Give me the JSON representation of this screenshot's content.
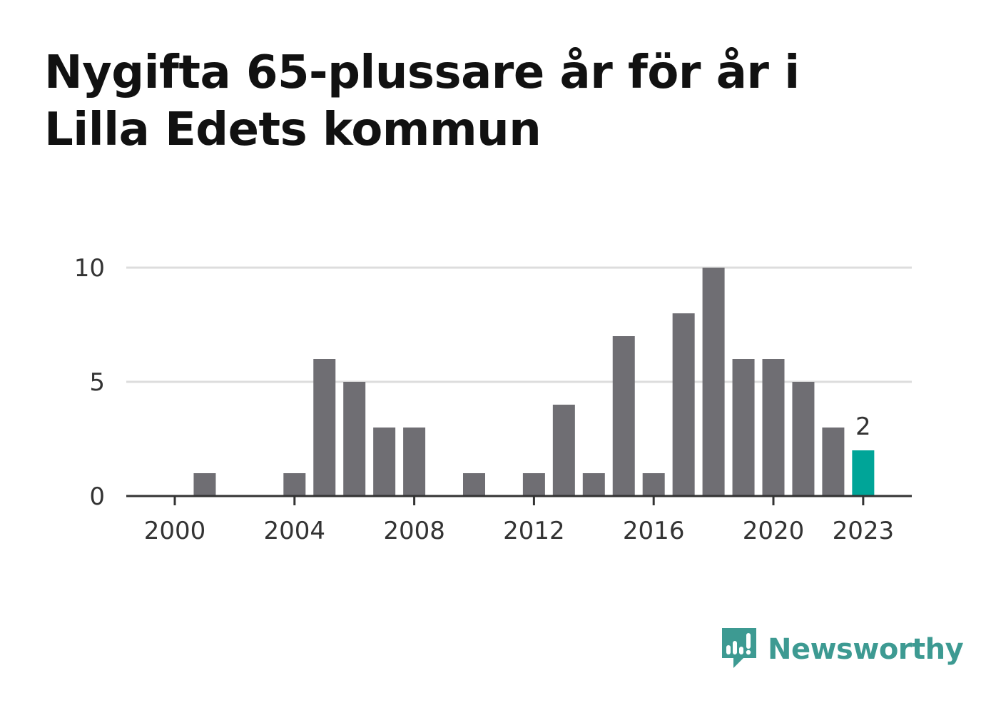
{
  "title": "Nygifta 65-plussare år för år i Lilla Edets kommun",
  "brand": {
    "name": "Newsworthy",
    "icon": "newsworthy-logo-icon",
    "color": "#3d9a92"
  },
  "colors": {
    "bar": "#6f6e73",
    "highlight": "#00a598",
    "grid": "#dddddd",
    "axis": "#333333"
  },
  "chart_data": {
    "type": "bar",
    "categories": [
      "2000",
      "2001",
      "2002",
      "2003",
      "2004",
      "2005",
      "2006",
      "2007",
      "2008",
      "2009",
      "2010",
      "2011",
      "2012",
      "2013",
      "2014",
      "2015",
      "2016",
      "2017",
      "2018",
      "2019",
      "2020",
      "2021",
      "2022",
      "2023"
    ],
    "values": [
      0,
      1,
      0,
      0,
      1,
      6,
      5,
      3,
      3,
      0,
      1,
      0,
      1,
      4,
      1,
      7,
      1,
      8,
      10,
      6,
      6,
      5,
      3,
      2
    ],
    "highlight_index": 23,
    "highlight_label": "2",
    "x_tick_labels": [
      "2000",
      "2004",
      "2008",
      "2012",
      "2016",
      "2020",
      "2023"
    ],
    "y_ticks": [
      0,
      5,
      10
    ],
    "ylim": [
      0,
      10
    ],
    "title": "Nygifta 65-plussare år för år i Lilla Edets kommun",
    "xlabel": "",
    "ylabel": "",
    "grid": true
  }
}
